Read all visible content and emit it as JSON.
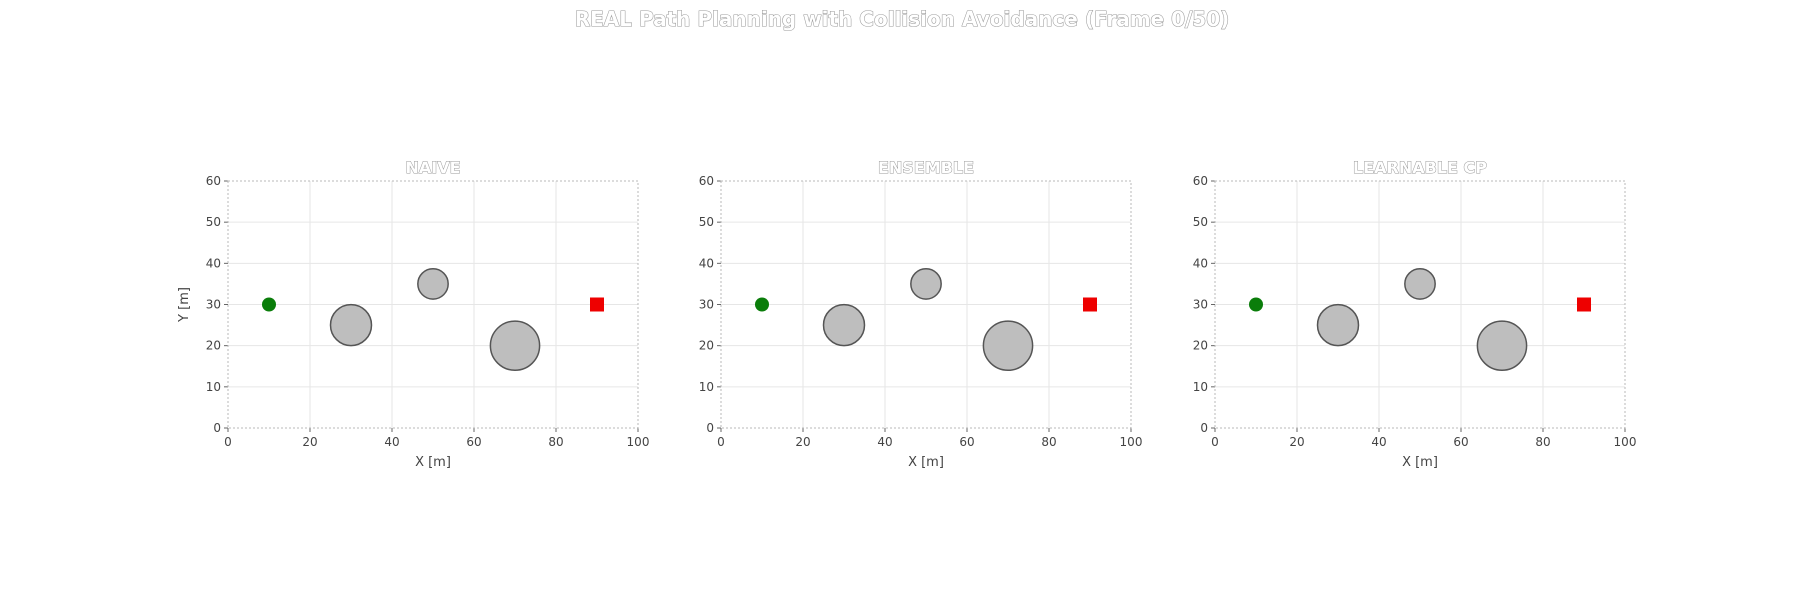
{
  "figure": {
    "title": "REAL Path Planning with Collision Avoidance (Frame 0/50)"
  },
  "colors": {
    "start": "#0a7d0a",
    "goal": "#ee0000",
    "obstacle_fill": "#bebebe",
    "obstacle_edge": "#555555"
  },
  "chart_data": [
    {
      "type": "scatter",
      "title": "NAIVE",
      "xlabel": "X [m]",
      "ylabel": "Y [m]",
      "xlim": [
        0,
        100
      ],
      "ylim": [
        0,
        60
      ],
      "xticks": [
        "0",
        "20",
        "40",
        "60",
        "80",
        "100"
      ],
      "yticks": [
        "0",
        "10",
        "20",
        "30",
        "40",
        "50",
        "60"
      ],
      "grid": true,
      "start": {
        "x": 10,
        "y": 30
      },
      "goal": {
        "x": 90,
        "y": 30
      },
      "obstacles": [
        {
          "x": 30,
          "y": 25,
          "r": 5
        },
        {
          "x": 50,
          "y": 35,
          "r": 3.7
        },
        {
          "x": 70,
          "y": 20,
          "r": 6
        }
      ]
    },
    {
      "type": "scatter",
      "title": "ENSEMBLE",
      "xlabel": "X [m]",
      "ylabel": "",
      "xlim": [
        0,
        100
      ],
      "ylim": [
        0,
        60
      ],
      "xticks": [
        "0",
        "20",
        "40",
        "60",
        "80",
        "100"
      ],
      "yticks": [
        "0",
        "10",
        "20",
        "30",
        "40",
        "50",
        "60"
      ],
      "grid": true,
      "start": {
        "x": 10,
        "y": 30
      },
      "goal": {
        "x": 90,
        "y": 30
      },
      "obstacles": [
        {
          "x": 30,
          "y": 25,
          "r": 5
        },
        {
          "x": 50,
          "y": 35,
          "r": 3.7
        },
        {
          "x": 70,
          "y": 20,
          "r": 6
        }
      ]
    },
    {
      "type": "scatter",
      "title": "LEARNABLE CP",
      "xlabel": "X [m]",
      "ylabel": "",
      "xlim": [
        0,
        100
      ],
      "ylim": [
        0,
        60
      ],
      "xticks": [
        "0",
        "20",
        "40",
        "60",
        "80",
        "100"
      ],
      "yticks": [
        "0",
        "10",
        "20",
        "30",
        "40",
        "50",
        "60"
      ],
      "grid": true,
      "start": {
        "x": 10,
        "y": 30
      },
      "goal": {
        "x": 90,
        "y": 30
      },
      "obstacles": [
        {
          "x": 30,
          "y": 25,
          "r": 5
        },
        {
          "x": 50,
          "y": 35,
          "r": 3.7
        },
        {
          "x": 70,
          "y": 20,
          "r": 6
        }
      ]
    }
  ]
}
